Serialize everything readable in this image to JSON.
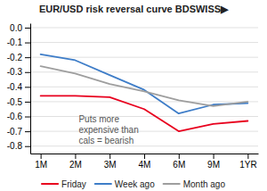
{
  "chart_data": {
    "type": "line",
    "title": "EUR/USD risk reversal curve BDSWISS▶",
    "categories": [
      "1M",
      "2M",
      "3M",
      "4M",
      "6M",
      "9M",
      "1YR"
    ],
    "series": [
      {
        "name": "Friday",
        "color": "#e8001e",
        "values": [
          -0.46,
          -0.46,
          -0.47,
          -0.55,
          -0.7,
          -0.65,
          -0.63
        ]
      },
      {
        "name": "Week ago",
        "color": "#3e7dc8",
        "values": [
          -0.18,
          -0.22,
          -0.32,
          -0.42,
          -0.58,
          -0.52,
          -0.51
        ]
      },
      {
        "name": "Month ago",
        "color": "#9e9e9e",
        "values": [
          -0.26,
          -0.31,
          -0.38,
          -0.43,
          -0.49,
          -0.53,
          -0.5
        ]
      }
    ],
    "annotation": "Puts more\nexpensive than\ncals = bearish",
    "ylim": [
      -0.85,
      0.03
    ],
    "yticks": [
      {
        "value": 0.0,
        "label": "0.0"
      },
      -0.1,
      -0.2,
      -0.3,
      -0.4,
      -0.5,
      -0.6,
      -0.7,
      -0.8
    ],
    "grid": true,
    "legend": "bottom"
  }
}
